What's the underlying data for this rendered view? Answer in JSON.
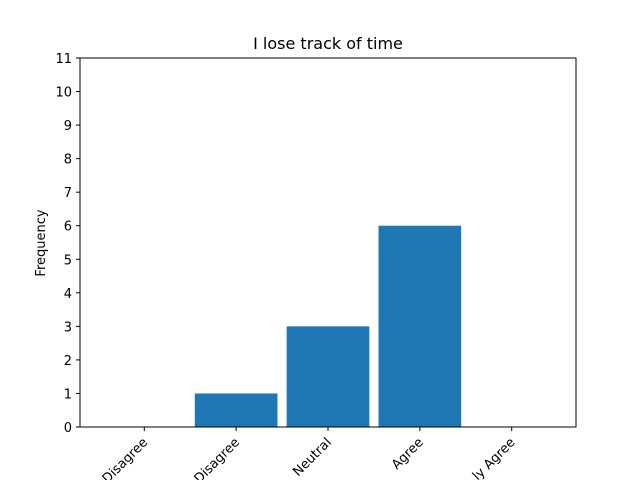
{
  "chart_data": {
    "type": "bar",
    "title": "I lose track of time",
    "xlabel": "",
    "ylabel": "Frequency",
    "categories": [
      "Strongly Disagree",
      "Disagree",
      "Neutral",
      "Agree",
      "Strongly Agree"
    ],
    "visible_category_labels": [
      "Disagree",
      "Disagree",
      "Neutral",
      "Agree",
      "ly Agree"
    ],
    "values": [
      0,
      1,
      3,
      6,
      0
    ],
    "ylim": [
      0,
      11
    ],
    "yticks": [
      0,
      1,
      2,
      3,
      4,
      5,
      6,
      7,
      8,
      9,
      10,
      11
    ],
    "bar_color": "#1f77b4",
    "grid": false,
    "legend": "none"
  }
}
